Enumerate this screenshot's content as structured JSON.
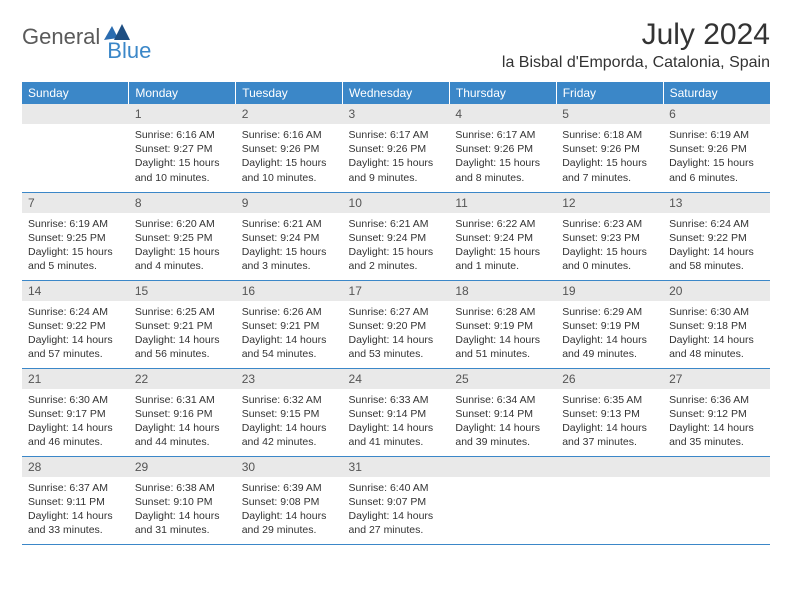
{
  "brand": {
    "part1": "General",
    "part2": "Blue"
  },
  "title": "July 2024",
  "location": "la Bisbal d'Emporda, Catalonia, Spain",
  "colors": {
    "header_bg": "#3b87c8",
    "header_text": "#ffffff",
    "daynum_bg": "#e9e9e9",
    "border": "#3b87c8",
    "text": "#333333",
    "logo_gray": "#5a5a5a",
    "logo_blue": "#3b87c8"
  },
  "weekdays": [
    "Sunday",
    "Monday",
    "Tuesday",
    "Wednesday",
    "Thursday",
    "Friday",
    "Saturday"
  ],
  "weeks": [
    [
      null,
      {
        "n": "1",
        "sr": "6:16 AM",
        "ss": "9:27 PM",
        "dl": "15 hours and 10 minutes."
      },
      {
        "n": "2",
        "sr": "6:16 AM",
        "ss": "9:26 PM",
        "dl": "15 hours and 10 minutes."
      },
      {
        "n": "3",
        "sr": "6:17 AM",
        "ss": "9:26 PM",
        "dl": "15 hours and 9 minutes."
      },
      {
        "n": "4",
        "sr": "6:17 AM",
        "ss": "9:26 PM",
        "dl": "15 hours and 8 minutes."
      },
      {
        "n": "5",
        "sr": "6:18 AM",
        "ss": "9:26 PM",
        "dl": "15 hours and 7 minutes."
      },
      {
        "n": "6",
        "sr": "6:19 AM",
        "ss": "9:26 PM",
        "dl": "15 hours and 6 minutes."
      }
    ],
    [
      {
        "n": "7",
        "sr": "6:19 AM",
        "ss": "9:25 PM",
        "dl": "15 hours and 5 minutes."
      },
      {
        "n": "8",
        "sr": "6:20 AM",
        "ss": "9:25 PM",
        "dl": "15 hours and 4 minutes."
      },
      {
        "n": "9",
        "sr": "6:21 AM",
        "ss": "9:24 PM",
        "dl": "15 hours and 3 minutes."
      },
      {
        "n": "10",
        "sr": "6:21 AM",
        "ss": "9:24 PM",
        "dl": "15 hours and 2 minutes."
      },
      {
        "n": "11",
        "sr": "6:22 AM",
        "ss": "9:24 PM",
        "dl": "15 hours and 1 minute."
      },
      {
        "n": "12",
        "sr": "6:23 AM",
        "ss": "9:23 PM",
        "dl": "15 hours and 0 minutes."
      },
      {
        "n": "13",
        "sr": "6:24 AM",
        "ss": "9:22 PM",
        "dl": "14 hours and 58 minutes."
      }
    ],
    [
      {
        "n": "14",
        "sr": "6:24 AM",
        "ss": "9:22 PM",
        "dl": "14 hours and 57 minutes."
      },
      {
        "n": "15",
        "sr": "6:25 AM",
        "ss": "9:21 PM",
        "dl": "14 hours and 56 minutes."
      },
      {
        "n": "16",
        "sr": "6:26 AM",
        "ss": "9:21 PM",
        "dl": "14 hours and 54 minutes."
      },
      {
        "n": "17",
        "sr": "6:27 AM",
        "ss": "9:20 PM",
        "dl": "14 hours and 53 minutes."
      },
      {
        "n": "18",
        "sr": "6:28 AM",
        "ss": "9:19 PM",
        "dl": "14 hours and 51 minutes."
      },
      {
        "n": "19",
        "sr": "6:29 AM",
        "ss": "9:19 PM",
        "dl": "14 hours and 49 minutes."
      },
      {
        "n": "20",
        "sr": "6:30 AM",
        "ss": "9:18 PM",
        "dl": "14 hours and 48 minutes."
      }
    ],
    [
      {
        "n": "21",
        "sr": "6:30 AM",
        "ss": "9:17 PM",
        "dl": "14 hours and 46 minutes."
      },
      {
        "n": "22",
        "sr": "6:31 AM",
        "ss": "9:16 PM",
        "dl": "14 hours and 44 minutes."
      },
      {
        "n": "23",
        "sr": "6:32 AM",
        "ss": "9:15 PM",
        "dl": "14 hours and 42 minutes."
      },
      {
        "n": "24",
        "sr": "6:33 AM",
        "ss": "9:14 PM",
        "dl": "14 hours and 41 minutes."
      },
      {
        "n": "25",
        "sr": "6:34 AM",
        "ss": "9:14 PM",
        "dl": "14 hours and 39 minutes."
      },
      {
        "n": "26",
        "sr": "6:35 AM",
        "ss": "9:13 PM",
        "dl": "14 hours and 37 minutes."
      },
      {
        "n": "27",
        "sr": "6:36 AM",
        "ss": "9:12 PM",
        "dl": "14 hours and 35 minutes."
      }
    ],
    [
      {
        "n": "28",
        "sr": "6:37 AM",
        "ss": "9:11 PM",
        "dl": "14 hours and 33 minutes."
      },
      {
        "n": "29",
        "sr": "6:38 AM",
        "ss": "9:10 PM",
        "dl": "14 hours and 31 minutes."
      },
      {
        "n": "30",
        "sr": "6:39 AM",
        "ss": "9:08 PM",
        "dl": "14 hours and 29 minutes."
      },
      {
        "n": "31",
        "sr": "6:40 AM",
        "ss": "9:07 PM",
        "dl": "14 hours and 27 minutes."
      },
      null,
      null,
      null
    ]
  ],
  "labels": {
    "sunrise": "Sunrise:",
    "sunset": "Sunset:",
    "daylight": "Daylight:"
  }
}
